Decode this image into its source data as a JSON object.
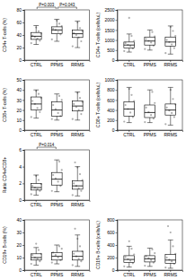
{
  "chart_data": [
    {
      "type": "box",
      "y_label": "CD4+ T-cells (%)",
      "categories": [
        "CTRL",
        "PPMS",
        "RRMS"
      ],
      "ylim": [
        0,
        80
      ],
      "yticks": [
        0,
        20,
        40,
        60,
        80
      ],
      "color": "#9a9a9a",
      "boxes": [
        {
          "min": 25,
          "q1": 33,
          "median": 38,
          "q3": 44,
          "max": 55,
          "points": [
            27,
            31,
            34,
            37,
            39,
            42,
            46,
            52
          ]
        },
        {
          "min": 30,
          "q1": 42,
          "median": 48,
          "q3": 53,
          "max": 65,
          "points": [
            33,
            41,
            45,
            48,
            50,
            54,
            58,
            63
          ]
        },
        {
          "min": 20,
          "q1": 36,
          "median": 42,
          "q3": 48,
          "max": 62,
          "points": [
            22,
            30,
            36,
            40,
            43,
            46,
            51,
            60
          ]
        }
      ],
      "annotations": [
        {
          "text": "P=0.003",
          "categories": [
            "CTRL",
            "PPMS"
          ]
        },
        {
          "text": "P=0.043",
          "categories": [
            "PPMS",
            "RRMS"
          ]
        }
      ]
    },
    {
      "type": "box",
      "y_label": "CD4+ T-cells (cells/uL)",
      "categories": [
        "CTRL",
        "PPMS",
        "RRMS"
      ],
      "ylim": [
        0,
        2500
      ],
      "yticks": [
        0,
        500,
        1000,
        1500,
        2000,
        2500
      ],
      "color": "#9a9a9a",
      "boxes": [
        {
          "min": 400,
          "q1": 600,
          "median": 750,
          "q3": 900,
          "max": 1300,
          "points": [
            450,
            580,
            700,
            760,
            850,
            950,
            1200,
            2100
          ]
        },
        {
          "min": 500,
          "q1": 750,
          "median": 950,
          "q3": 1150,
          "max": 1500,
          "points": [
            550,
            720,
            880,
            960,
            1050,
            1180,
            1400
          ]
        },
        {
          "min": 300,
          "q1": 700,
          "median": 900,
          "q3": 1150,
          "max": 1700,
          "points": [
            350,
            600,
            780,
            900,
            1000,
            1200,
            1450,
            1650
          ]
        }
      ]
    },
    {
      "type": "box",
      "y_label": "CD8+ T-cells (%)",
      "categories": [
        "CTRL",
        "PPMS",
        "RRMS"
      ],
      "ylim": [
        0,
        50
      ],
      "yticks": [
        0,
        10,
        20,
        30,
        40,
        50
      ],
      "color": "#9a9a9a",
      "boxes": [
        {
          "min": 12,
          "q1": 20,
          "median": 26,
          "q3": 33,
          "max": 40,
          "points": [
            13,
            18,
            22,
            26,
            29,
            32,
            36,
            39
          ]
        },
        {
          "min": 10,
          "q1": 14,
          "median": 20,
          "q3": 28,
          "max": 36,
          "points": [
            11,
            14,
            17,
            21,
            25,
            30,
            34
          ]
        },
        {
          "min": 10,
          "q1": 19,
          "median": 24,
          "q3": 29,
          "max": 38,
          "points": [
            11,
            16,
            20,
            23,
            26,
            28,
            32,
            37
          ]
        }
      ]
    },
    {
      "type": "box",
      "y_label": "CD8+ T-cells (cells/uL)",
      "categories": [
        "CTRL",
        "PPMS",
        "RRMS"
      ],
      "ylim": [
        0,
        1000
      ],
      "yticks": [
        0,
        200,
        400,
        600,
        800,
        1000
      ],
      "color": "#9a9a9a",
      "boxes": [
        {
          "min": 150,
          "q1": 280,
          "median": 420,
          "q3": 560,
          "max": 850,
          "points": [
            170,
            260,
            350,
            420,
            500,
            580,
            700,
            820
          ]
        },
        {
          "min": 150,
          "q1": 250,
          "median": 350,
          "q3": 500,
          "max": 800,
          "points": [
            160,
            230,
            300,
            360,
            450,
            540,
            760
          ]
        },
        {
          "min": 100,
          "q1": 300,
          "median": 400,
          "q3": 520,
          "max": 850,
          "points": [
            120,
            260,
            340,
            390,
            450,
            510,
            620,
            800
          ]
        }
      ]
    },
    {
      "type": "box",
      "y_label": "Ratio CD4+/CD8+",
      "categories": [
        "CTRL",
        "PPMS",
        "RRMS"
      ],
      "ylim": [
        0,
        6
      ],
      "yticks": [
        0,
        2,
        4,
        6
      ],
      "color": "#9a9a9a",
      "boxes": [
        {
          "min": 0.6,
          "q1": 1.2,
          "median": 1.5,
          "q3": 2.0,
          "max": 3.0,
          "points": [
            0.7,
            1.1,
            1.3,
            1.5,
            1.7,
            1.9,
            2.4,
            2.9
          ]
        },
        {
          "min": 1.0,
          "q1": 1.8,
          "median": 2.5,
          "q3": 3.3,
          "max": 4.8,
          "points": [
            1.1,
            1.7,
            2.2,
            2.6,
            3.0,
            3.6,
            4.6
          ]
        },
        {
          "min": 0.5,
          "q1": 1.3,
          "median": 1.7,
          "q3": 2.3,
          "max": 4.0,
          "points": [
            0.6,
            1.1,
            1.4,
            1.7,
            2.0,
            2.4,
            3.1,
            3.9,
            4.5
          ]
        }
      ],
      "annotations": [
        {
          "text": "P=0.014",
          "categories": [
            "CTRL",
            "PPMS"
          ]
        }
      ]
    },
    {
      "type": "box",
      "y_label": "CD19+ B-cells (%)",
      "categories": [
        "CTRL",
        "PPMS",
        "RRMS"
      ],
      "ylim": [
        0,
        40
      ],
      "yticks": [
        0,
        10,
        20,
        30,
        40
      ],
      "color": "#9a9a9a",
      "boxes": [
        {
          "min": 4,
          "q1": 8,
          "median": 10,
          "q3": 13,
          "max": 18,
          "points": [
            5,
            7,
            9,
            10,
            12,
            13,
            16,
            21
          ]
        },
        {
          "min": 5,
          "q1": 8,
          "median": 11,
          "q3": 14,
          "max": 20,
          "points": [
            6,
            8,
            10,
            12,
            14,
            17,
            19
          ]
        },
        {
          "min": 3,
          "q1": 8,
          "median": 11,
          "q3": 15,
          "max": 28,
          "points": [
            4,
            7,
            9,
            11,
            13,
            15,
            19,
            25,
            33
          ]
        }
      ]
    },
    {
      "type": "box",
      "y_label": "CD19+ B-cells (cells/uL)",
      "categories": [
        "CTRL",
        "PPMS",
        "RRMS"
      ],
      "ylim": [
        0,
        800
      ],
      "yticks": [
        0,
        200,
        400,
        600,
        800
      ],
      "color": "#9a9a9a",
      "boxes": [
        {
          "min": 50,
          "q1": 120,
          "median": 170,
          "q3": 230,
          "max": 380,
          "points": [
            60,
            110,
            150,
            175,
            210,
            250,
            340,
            460
          ]
        },
        {
          "min": 60,
          "q1": 130,
          "median": 180,
          "q3": 230,
          "max": 350,
          "points": [
            70,
            120,
            160,
            190,
            220,
            270,
            330
          ]
        },
        {
          "min": 30,
          "q1": 110,
          "median": 160,
          "q3": 250,
          "max": 480,
          "points": [
            40,
            100,
            140,
            165,
            200,
            260,
            380,
            600,
            700
          ]
        }
      ]
    }
  ]
}
